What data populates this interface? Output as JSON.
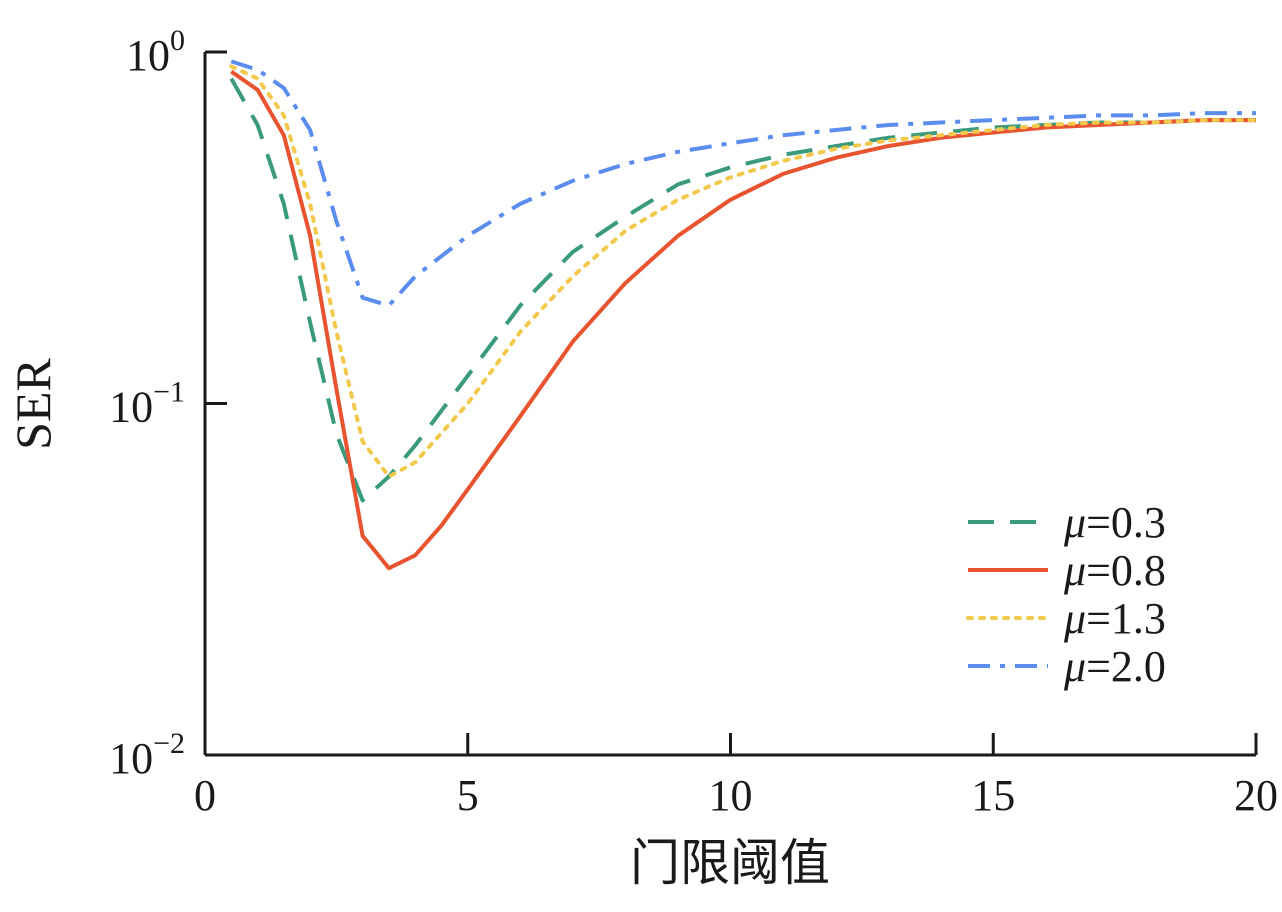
{
  "chart_data": {
    "type": "line",
    "title": "",
    "xlabel": "门限阈值",
    "ylabel": "SER",
    "xlim": [
      0,
      20
    ],
    "ylim": [
      0.01,
      1
    ],
    "yscale": "log",
    "grid": false,
    "legend_position": "bottom-right",
    "x_ticks": [
      0,
      5,
      10,
      15,
      20
    ],
    "x_tick_labels": [
      "0",
      "5",
      "10",
      "15",
      "20"
    ],
    "y_ticks": [
      1,
      0.1,
      0.01
    ],
    "y_tick_labels": [
      {
        "base": "10",
        "exp": "0"
      },
      {
        "base": "10",
        "exp": "−1"
      },
      {
        "base": "10",
        "exp": "−2"
      }
    ],
    "series": [
      {
        "name": "=0.3",
        "symbol": "μ",
        "color": "#3a9a7c",
        "dash": "dashed",
        "x": [
          0.5,
          1,
          1.5,
          2,
          2.5,
          3,
          3.5,
          4,
          5,
          6,
          7,
          8,
          9,
          10,
          11,
          12,
          13,
          14,
          15,
          16,
          17,
          18,
          19,
          20
        ],
        "y": [
          0.84,
          0.62,
          0.37,
          0.17,
          0.082,
          0.053,
          0.062,
          0.076,
          0.12,
          0.19,
          0.27,
          0.34,
          0.42,
          0.47,
          0.51,
          0.54,
          0.57,
          0.59,
          0.61,
          0.62,
          0.63,
          0.63,
          0.64,
          0.64
        ]
      },
      {
        "name": "=0.8",
        "symbol": "μ",
        "color": "#e8542f",
        "dash": "solid",
        "x": [
          0.5,
          1,
          1.5,
          2,
          2.5,
          3,
          3.5,
          4,
          4.5,
          5,
          6,
          7,
          8,
          9,
          10,
          11,
          12,
          13,
          14,
          15,
          16,
          17,
          18,
          19,
          20
        ],
        "y": [
          0.88,
          0.78,
          0.58,
          0.3,
          0.11,
          0.042,
          0.034,
          0.037,
          0.045,
          0.057,
          0.092,
          0.15,
          0.22,
          0.3,
          0.38,
          0.45,
          0.5,
          0.54,
          0.57,
          0.59,
          0.61,
          0.62,
          0.63,
          0.64,
          0.64
        ]
      },
      {
        "name": "=1.3",
        "symbol": "μ",
        "color": "#f2c94c",
        "dash": "dotted",
        "x": [
          0.5,
          1,
          1.5,
          2,
          2.5,
          3,
          3.5,
          4,
          5,
          6,
          7,
          8,
          9,
          10,
          11,
          12,
          13,
          14,
          15,
          16,
          17,
          18,
          19,
          20
        ],
        "y": [
          0.91,
          0.84,
          0.66,
          0.37,
          0.16,
          0.078,
          0.062,
          0.068,
          0.1,
          0.16,
          0.23,
          0.31,
          0.38,
          0.44,
          0.49,
          0.53,
          0.56,
          0.58,
          0.6,
          0.62,
          0.63,
          0.63,
          0.64,
          0.64
        ]
      },
      {
        "name": "=2.0",
        "symbol": "μ",
        "color": "#5b8def",
        "dash": "dashdot",
        "x": [
          0.5,
          1,
          1.5,
          2,
          2.5,
          3,
          3.5,
          4,
          5,
          6,
          7,
          8,
          9,
          10,
          11,
          12,
          13,
          14,
          15,
          16,
          17,
          18,
          19,
          20
        ],
        "y": [
          0.94,
          0.89,
          0.79,
          0.6,
          0.33,
          0.2,
          0.19,
          0.23,
          0.3,
          0.37,
          0.43,
          0.48,
          0.52,
          0.55,
          0.58,
          0.6,
          0.62,
          0.63,
          0.64,
          0.65,
          0.66,
          0.66,
          0.67,
          0.67
        ]
      }
    ]
  }
}
